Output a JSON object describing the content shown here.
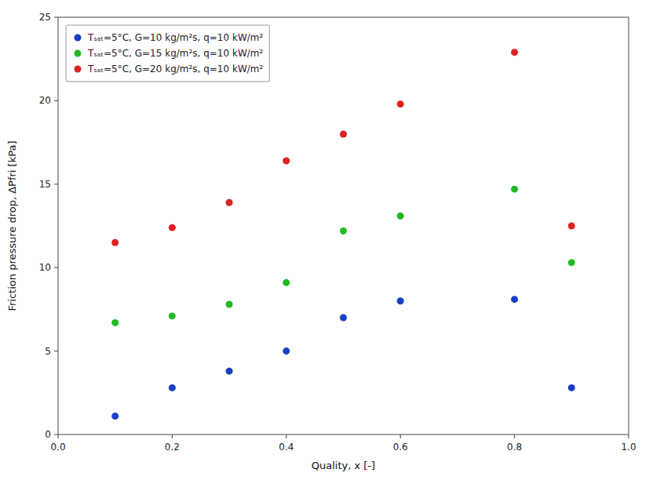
{
  "chart_data": {
    "type": "scatter",
    "xlabel": "Quality, x [-]",
    "ylabel": "Friction pressure drop, ΔPfri [kPa]",
    "x": [
      0.1,
      0.2,
      0.3,
      0.4,
      0.5,
      0.6,
      0.8,
      0.9
    ],
    "series": [
      {
        "name": "Tₛₐₜ=5°C, G=10 kg/m²s, q=10 kW/m²",
        "color": "#1a3fc4",
        "values": [
          1.1,
          2.8,
          3.8,
          5.0,
          7.0,
          8.0,
          8.1,
          2.8
        ]
      },
      {
        "name": "Tₛₐₜ=5°C, G=15 kg/m²s, q=10 kW/m²",
        "color": "#22bb22",
        "values": [
          6.7,
          7.1,
          7.8,
          9.1,
          12.2,
          13.1,
          14.7,
          10.3
        ]
      },
      {
        "name": "Tₛₐₜ=5°C, G=20 kg/m²s, q=10 kW/m²",
        "color": "#dd2222",
        "values": [
          11.5,
          12.4,
          13.9,
          16.4,
          18.0,
          19.8,
          22.9,
          12.5
        ]
      }
    ],
    "xlim": [
      0.0,
      1.0
    ],
    "ylim": [
      0,
      25
    ],
    "xticks": [
      {
        "value": 0.0,
        "label": "0.0"
      },
      0.2,
      0.4,
      0.6,
      0.8,
      {
        "value": 1.0,
        "label": "1.0"
      }
    ],
    "yticks": [
      0,
      5,
      10,
      15,
      20,
      25
    ],
    "grid": false,
    "legend": "upper left"
  }
}
